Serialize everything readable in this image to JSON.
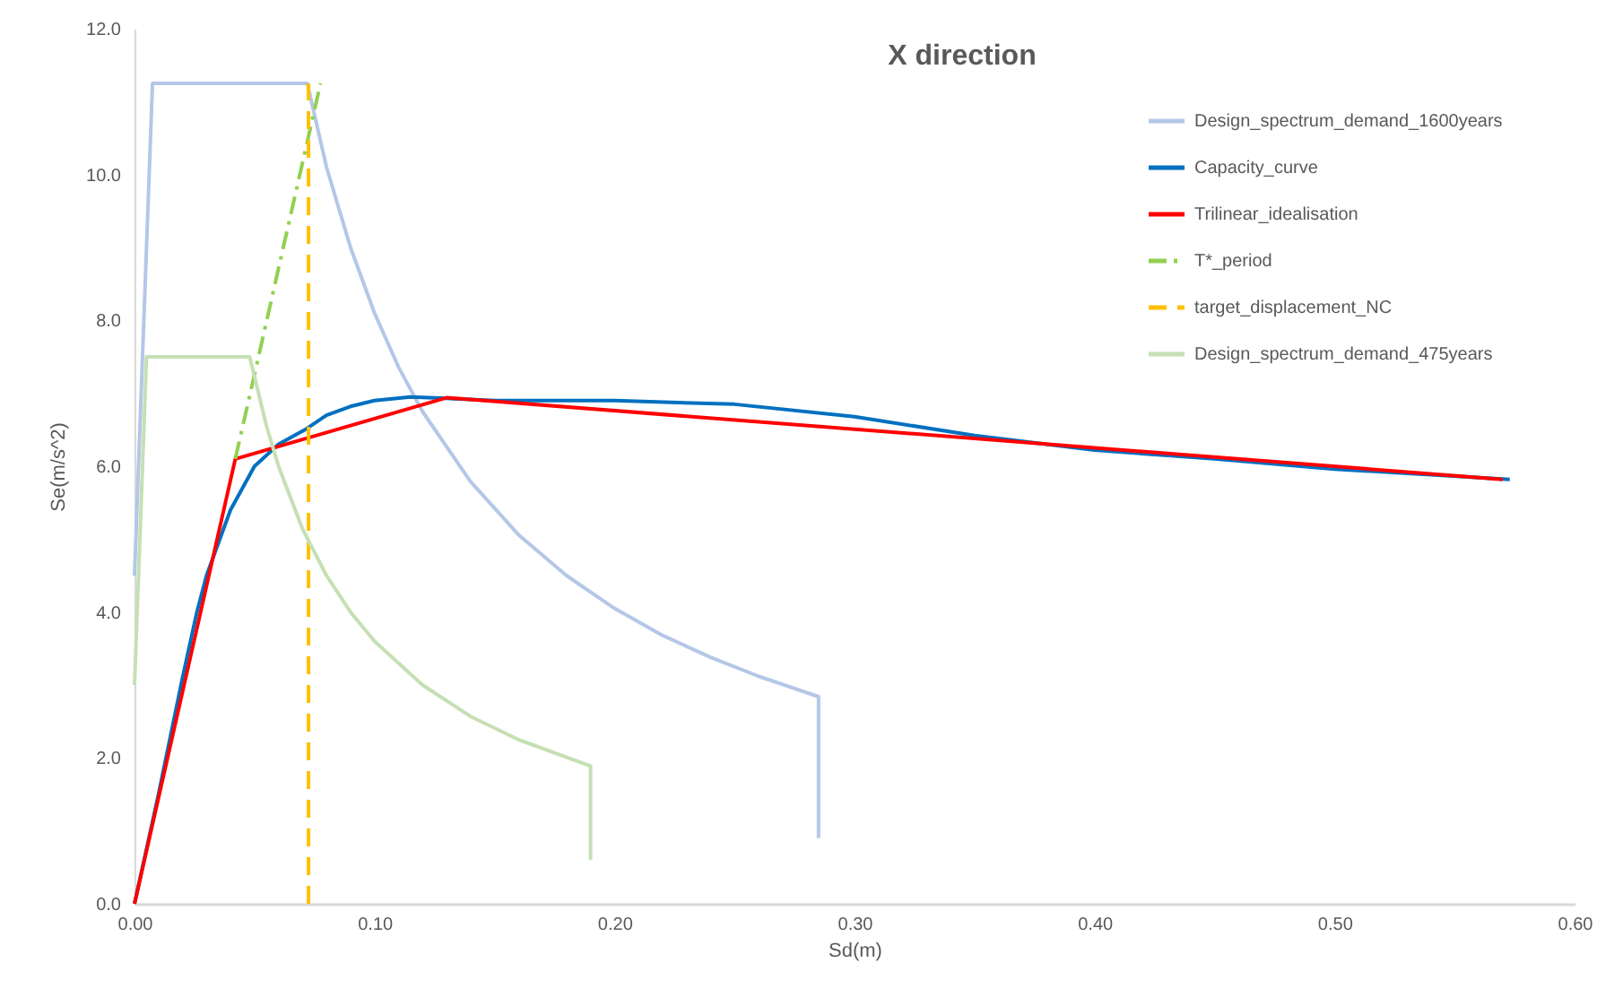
{
  "chart_data": {
    "type": "line",
    "title": "X direction",
    "xlabel": "Sd(m)",
    "ylabel": "Se(m/s^2)",
    "xlim": [
      0,
      0.6
    ],
    "xticks": [
      {
        "value": 0,
        "label": "0.00"
      },
      {
        "value": 0.1,
        "label": "0.10"
      },
      {
        "value": 0.2,
        "label": "0.20"
      },
      {
        "value": 0.3,
        "label": "0.30"
      },
      {
        "value": 0.4,
        "label": "0.40"
      },
      {
        "value": 0.5,
        "label": "0.50"
      },
      {
        "value": 0.6,
        "label": "0.60"
      }
    ],
    "ylim": [
      0,
      12
    ],
    "yticks": [
      {
        "value": 0,
        "label": "0.0"
      },
      {
        "value": 2,
        "label": "2.0"
      },
      {
        "value": 4,
        "label": "4.0"
      },
      {
        "value": 6,
        "label": "6.0"
      },
      {
        "value": 8,
        "label": "8.0"
      },
      {
        "value": 10,
        "label": "10.0"
      },
      {
        "value": 12,
        "label": "12.0"
      }
    ],
    "grid": false,
    "legend": "top right",
    "marker": "none",
    "series": [
      {
        "name": "Design_spectrum_demand_1600years",
        "color": "#b4c7e7",
        "line_style": "solid",
        "x": [
          0,
          0.0075,
          0.072,
          0.08,
          0.09,
          0.1,
          0.11,
          0.12,
          0.14,
          0.16,
          0.18,
          0.2,
          0.22,
          0.24,
          0.26,
          0.285,
          0.285
        ],
        "values": [
          4.5,
          11.25,
          11.25,
          10.1,
          9.0,
          8.1,
          7.36,
          6.75,
          5.79,
          5.06,
          4.5,
          4.05,
          3.68,
          3.38,
          3.12,
          2.84,
          0.9
        ]
      },
      {
        "name": "Capacity_curve",
        "color": "#0070c0",
        "line_style": "solid",
        "x": [
          0,
          0.01,
          0.02,
          0.026,
          0.03,
          0.04,
          0.05,
          0.06,
          0.071,
          0.08,
          0.09,
          0.1,
          0.115,
          0.13,
          0.15,
          0.2,
          0.25,
          0.3,
          0.35,
          0.4,
          0.45,
          0.5,
          0.573
        ],
        "values": [
          0,
          1.5,
          3.1,
          4.0,
          4.5,
          5.4,
          6.0,
          6.3,
          6.5,
          6.7,
          6.82,
          6.9,
          6.95,
          6.93,
          6.9,
          6.9,
          6.85,
          6.68,
          6.42,
          6.22,
          6.1,
          5.96,
          5.82
        ]
      },
      {
        "name": "Trilinear_idealisation",
        "color": "#ff0000",
        "line_style": "solid",
        "x": [
          0,
          0.042,
          0.13,
          0.57
        ],
        "values": [
          0,
          6.1,
          6.94,
          5.82
        ]
      },
      {
        "name": "T*_period",
        "color": "#92d050",
        "line_style": "dashdot",
        "x": [
          0.042,
          0.0775
        ],
        "values": [
          6.1,
          11.25
        ]
      },
      {
        "name": "target_displacement_NC",
        "color": "#ffc000",
        "line_style": "dashed",
        "x": [
          0.0725,
          0.0725
        ],
        "values": [
          0,
          11.25
        ]
      },
      {
        "name": "Design_spectrum_demand_475years",
        "color": "#c5e0b4",
        "line_style": "solid",
        "x": [
          0,
          0.005,
          0.048,
          0.055,
          0.06,
          0.07,
          0.08,
          0.09,
          0.1,
          0.12,
          0.14,
          0.16,
          0.19,
          0.19
        ],
        "values": [
          3.0,
          7.5,
          7.5,
          6.55,
          6.0,
          5.14,
          4.5,
          4.0,
          3.6,
          3.0,
          2.57,
          2.25,
          1.89,
          0.6
        ]
      }
    ]
  }
}
